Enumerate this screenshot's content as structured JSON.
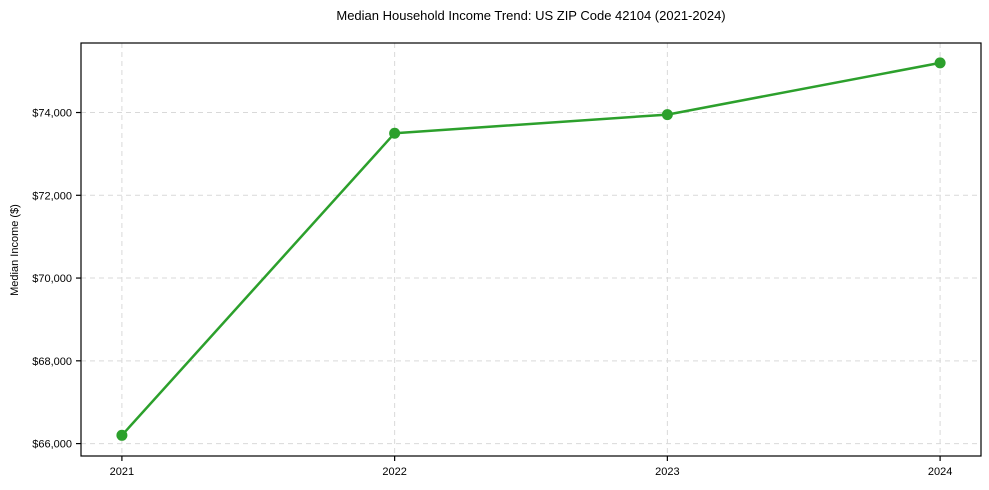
{
  "chart_data": {
    "type": "line",
    "title": "Median Household Income Trend: US ZIP Code 42104 (2021-2024)",
    "xlabel": "",
    "ylabel": "Median Income ($)",
    "categories": [
      "2021",
      "2022",
      "2023",
      "2024"
    ],
    "values": [
      66200,
      73500,
      73950,
      75200
    ],
    "y_ticks": [
      {
        "value": 66000,
        "label": "$66,000"
      },
      {
        "value": 68000,
        "label": "$68,000"
      },
      {
        "value": 70000,
        "label": "$70,000"
      },
      {
        "value": 72000,
        "label": "$72,000"
      },
      {
        "value": 74000,
        "label": "$74,000"
      }
    ],
    "ylim": [
      65700,
      75680
    ],
    "grid": true,
    "grid_style": "dashed",
    "legend": false,
    "marker": "circle",
    "colors": {
      "line": "#2ca02c",
      "marker": "#2ca02c",
      "grid": "#d9d9d9",
      "spine": "#000000",
      "text": "#000000",
      "background": "#ffffff"
    }
  }
}
